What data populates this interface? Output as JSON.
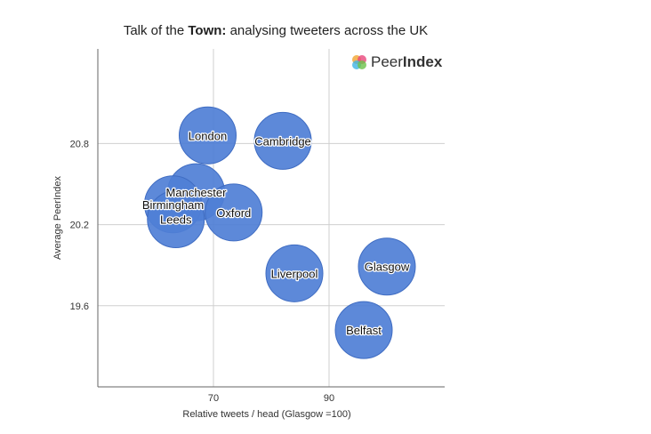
{
  "title": {
    "prefix": "Talk of the ",
    "bold": "Town:",
    "suffix": " analysing tweeters across the UK"
  },
  "logo": {
    "part1": "Peer",
    "part2": "Index",
    "icon": "peerindex-logo-icon"
  },
  "colors": {
    "bubble": "#4f7fd6",
    "bubble_edge": "#3f6cc2",
    "grid": "#cfcfcf",
    "axis": "#666666"
  },
  "chart_data": {
    "type": "scatter",
    "title": "Talk of the Town: analysing tweeters across the UK",
    "xlabel": "Relative tweets / head (Glasgow =100)",
    "ylabel": "Average PeerIndex",
    "xlim": [
      50,
      110
    ],
    "ylim": [
      19.0,
      21.5
    ],
    "xticks": [
      70,
      90
    ],
    "yticks": [
      19.6,
      20.2,
      20.8
    ],
    "grid": true,
    "points": [
      {
        "label": "London",
        "x": 69,
        "y": 20.86
      },
      {
        "label": "Cambridge",
        "x": 82,
        "y": 20.82
      },
      {
        "label": "Manchester",
        "x": 67,
        "y": 20.44
      },
      {
        "label": "Birmingham",
        "x": 63,
        "y": 20.35
      },
      {
        "label": "Leeds",
        "x": 63.5,
        "y": 20.24
      },
      {
        "label": "Oxford",
        "x": 73.5,
        "y": 20.29
      },
      {
        "label": "Liverpool",
        "x": 84,
        "y": 19.84
      },
      {
        "label": "Glasgow",
        "x": 100,
        "y": 19.89
      },
      {
        "label": "Belfast",
        "x": 96,
        "y": 19.42
      }
    ]
  }
}
